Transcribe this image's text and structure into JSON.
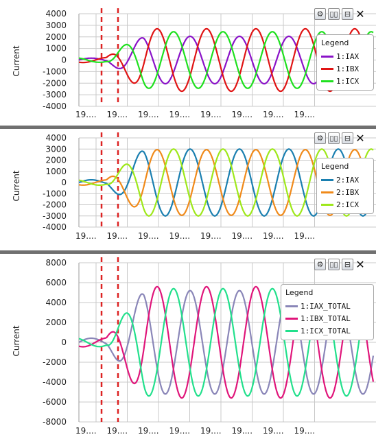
{
  "colors": {
    "gridline": "#c8c8c8",
    "marker": "#dd2222",
    "separator": "#707070",
    "tick_text": "#222222"
  },
  "toolbar": {
    "settings_icon": "gear-icon",
    "columns_icon": "split-columns-icon",
    "rows_icon": "split-rows-icon",
    "close_label": "✕"
  },
  "chart_data": [
    {
      "type": "line",
      "ylabel": "Current",
      "ylim": [
        -4000,
        4000
      ],
      "yticks": [
        4000,
        3000,
        2000,
        1000,
        0,
        -1000,
        -2000,
        -3000,
        -4000
      ],
      "xtick_labels": [
        "19....",
        "19....",
        "19....",
        "19....",
        "19....",
        "19....",
        "19....",
        "19...."
      ],
      "legend_title": "Legend",
      "legend_position": "right",
      "marker_lines": 2,
      "series": [
        {
          "name": "1:IAX",
          "color": "#8a12c8",
          "amplitude": 2050,
          "phase": 0,
          "onset": 0.5
        },
        {
          "name": "1:IBX",
          "color": "#e01414",
          "amplitude": 2700,
          "phase": 120,
          "onset": 0.5
        },
        {
          "name": "1:ICX",
          "color": "#1ee01e",
          "amplitude": 2450,
          "phase": 240,
          "onset": 0.5
        }
      ]
    },
    {
      "type": "line",
      "ylabel": "Current",
      "ylim": [
        -4000,
        4000
      ],
      "yticks": [
        4000,
        3000,
        2000,
        1000,
        0,
        -1000,
        -2000,
        -3000,
        -4000
      ],
      "xtick_labels": [
        "19....",
        "19....",
        "19....",
        "19....",
        "19....",
        "19....",
        "19....",
        "19...."
      ],
      "legend_title": "Legend",
      "legend_position": "right",
      "marker_lines": 2,
      "series": [
        {
          "name": "2:IAX",
          "color": "#1a7fb0",
          "amplitude": 3000,
          "phase": 0,
          "onset": 0.5
        },
        {
          "name": "2:IBX",
          "color": "#f08a1a",
          "amplitude": 2950,
          "phase": 120,
          "onset": 0.5
        },
        {
          "name": "2:ICX",
          "color": "#9ee81a",
          "amplitude": 3000,
          "phase": 240,
          "onset": 0.5
        }
      ]
    },
    {
      "type": "line",
      "ylabel": "Current",
      "ylim": [
        -8000,
        8000
      ],
      "yticks": [
        8000,
        6000,
        4000,
        2000,
        0,
        -2000,
        -4000,
        -6000,
        -8000
      ],
      "xtick_labels": [
        "19....",
        "19....",
        "19....",
        "19....",
        "19....",
        "19....",
        "19....",
        "19...."
      ],
      "legend_title": "Legend",
      "legend_position": "right",
      "marker_lines": 2,
      "series": [
        {
          "name": "1:IAX_TOTAL",
          "color": "#8a86b8",
          "amplitude": 5200,
          "phase": 0,
          "onset": 0.5
        },
        {
          "name": "1:IBX_TOTAL",
          "color": "#e0157a",
          "amplitude": 5600,
          "phase": 120,
          "onset": 0.5
        },
        {
          "name": "1:ICX_TOTAL",
          "color": "#22e08c",
          "amplitude": 5400,
          "phase": 240,
          "onset": 0.5
        }
      ]
    }
  ]
}
